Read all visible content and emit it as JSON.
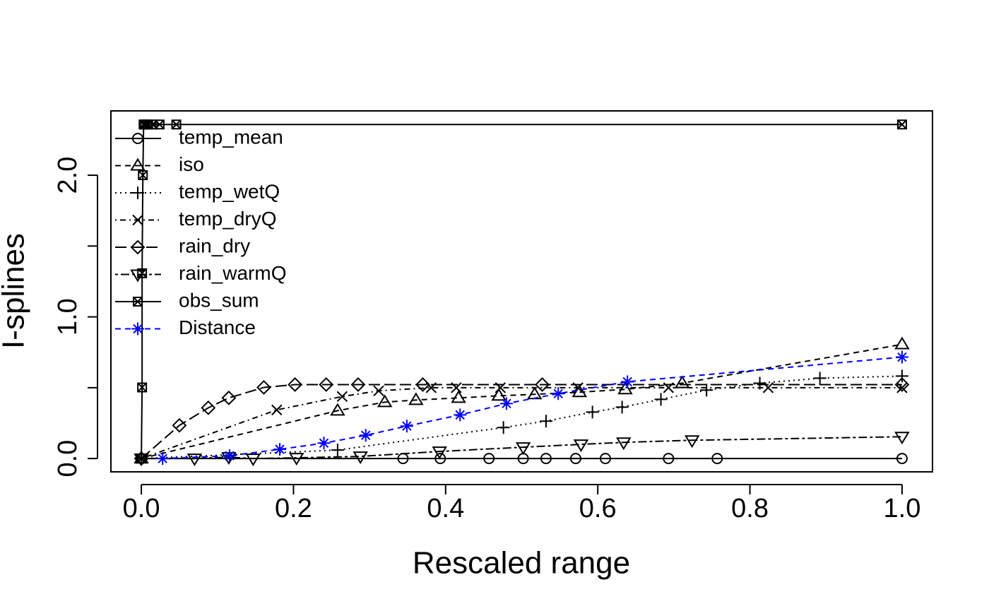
{
  "chart_data": {
    "type": "line",
    "xlabel": "Rescaled range",
    "ylabel": "I-splines",
    "xlim": [
      -0.04,
      1.04
    ],
    "ylim": [
      -0.094,
      2.454
    ],
    "xticks": [
      {
        "value": 0,
        "label": "0.0"
      },
      {
        "value": 0.2,
        "label": "0.2"
      },
      {
        "value": 0.4,
        "label": "0.4"
      },
      {
        "value": 0.6,
        "label": "0.6"
      },
      {
        "value": 0.8,
        "label": "0.8"
      },
      {
        "value": 1,
        "label": "1.0"
      }
    ],
    "yticks": [
      {
        "value": 0,
        "label": "0.0"
      },
      {
        "value": 0.5,
        "label": null
      },
      {
        "value": 1,
        "label": "1.0"
      },
      {
        "value": 1.5,
        "label": null
      },
      {
        "value": 2,
        "label": "2.0"
      }
    ],
    "grid": false,
    "legend": "top-left",
    "series": [
      {
        "name": "temp_mean",
        "color": "#000000",
        "linestyle": "solid",
        "marker": "circle",
        "x": [
          0,
          0.344,
          0.393,
          0.457,
          0.502,
          0.532,
          0.571,
          0.61,
          0.693,
          0.757,
          1.0
        ],
        "values": [
          0,
          0,
          0,
          0,
          0,
          0,
          0,
          0,
          0,
          0,
          0
        ]
      },
      {
        "name": "iso",
        "color": "#000000",
        "linestyle": "dashed",
        "marker": "triangle",
        "x": [
          0,
          0.258,
          0.32,
          0.361,
          0.417,
          0.47,
          0.517,
          0.576,
          0.636,
          0.711,
          1.0
        ],
        "values": [
          0,
          0.338,
          0.398,
          0.413,
          0.428,
          0.443,
          0.453,
          0.468,
          0.488,
          0.532,
          0.806
        ]
      },
      {
        "name": "temp_wetQ",
        "color": "#000000",
        "linestyle": "dotted",
        "marker": "plus",
        "x": [
          0,
          0.258,
          0.476,
          0.532,
          0.593,
          0.632,
          0.683,
          0.743,
          0.813,
          0.892,
          1.0
        ],
        "values": [
          0,
          0.06,
          0.219,
          0.264,
          0.328,
          0.363,
          0.418,
          0.483,
          0.532,
          0.567,
          0.582
        ]
      },
      {
        "name": "temp_dryQ",
        "color": "#000000",
        "linestyle": "dotdash",
        "marker": "cross",
        "x": [
          0,
          0.178,
          0.264,
          0.312,
          0.381,
          0.414,
          0.472,
          0.574,
          0.693,
          0.824,
          1.0
        ],
        "values": [
          0,
          0.343,
          0.438,
          0.478,
          0.5,
          0.5,
          0.5,
          0.5,
          0.5,
          0.5,
          0.5
        ]
      },
      {
        "name": "rain_dry",
        "color": "#000000",
        "linestyle": "longdash",
        "marker": "diamond",
        "x": [
          0,
          0.05,
          0.088,
          0.115,
          0.161,
          0.202,
          0.243,
          0.285,
          0.37,
          0.527,
          1.0
        ],
        "values": [
          0,
          0.234,
          0.358,
          0.428,
          0.502,
          0.522,
          0.522,
          0.522,
          0.522,
          0.522,
          0.522
        ]
      },
      {
        "name": "rain_warmQ",
        "color": "#000000",
        "linestyle": "twodash",
        "marker": "triangle-down",
        "x": [
          0,
          0.07,
          0.115,
          0.147,
          0.204,
          0.288,
          0.392,
          0.502,
          0.578,
          0.634,
          0.724,
          1.0
        ],
        "values": [
          0,
          0,
          0.01,
          0,
          0.005,
          0.015,
          0.05,
          0.08,
          0.1,
          0.114,
          0.129,
          0.154
        ]
      },
      {
        "name": "obs_sum",
        "color": "#000000",
        "linestyle": "solid",
        "marker": "boxcross",
        "x": [
          0,
          0.001,
          0.001,
          0.002,
          0.003,
          0.005,
          0.009,
          0.015,
          0.024,
          0.046,
          1.0
        ],
        "values": [
          0,
          0.502,
          1.308,
          2.0,
          2.358,
          2.358,
          2.358,
          2.358,
          2.358,
          2.358,
          2.358
        ]
      },
      {
        "name": "Distance",
        "color": "#0000ff",
        "linestyle": "dashed",
        "marker": "asterisk",
        "x": [
          0.028,
          0.116,
          0.182,
          0.24,
          0.295,
          0.349,
          0.419,
          0.48,
          0.548,
          0.639,
          1.0
        ],
        "values": [
          0,
          0.02,
          0.065,
          0.109,
          0.164,
          0.229,
          0.308,
          0.388,
          0.458,
          0.542,
          0.716
        ]
      }
    ]
  }
}
